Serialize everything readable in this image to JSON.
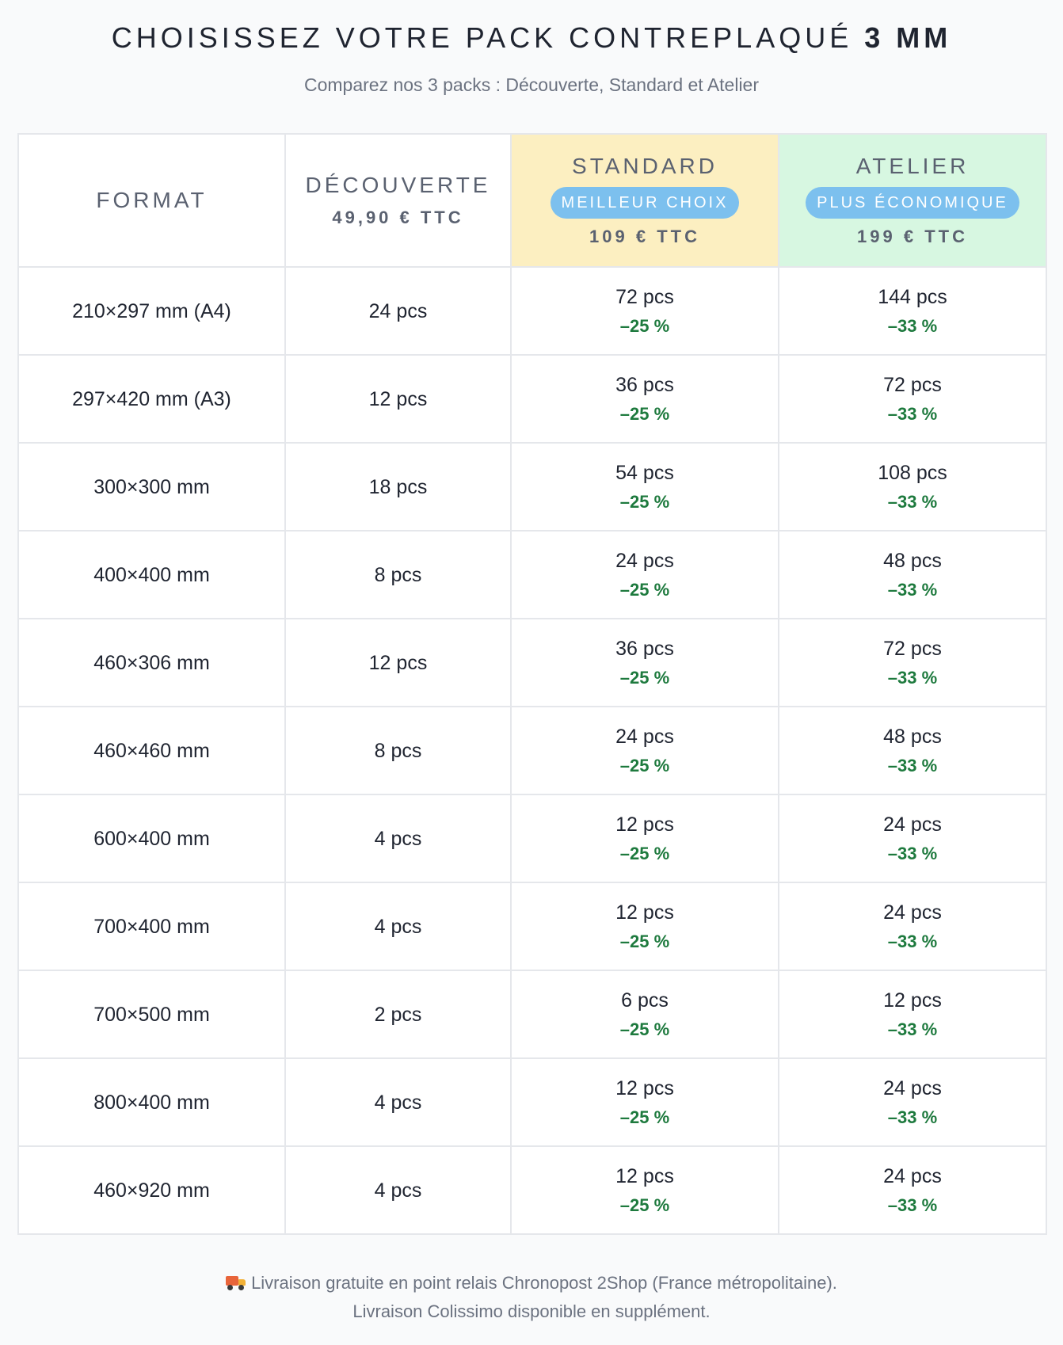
{
  "header": {
    "title_main": "CHOISISSEZ VOTRE PACK CONTREPLAQUÉ",
    "title_strong": "3 MM",
    "subtitle": "Comparez nos 3 packs : Découverte, Standard et Atelier"
  },
  "table": {
    "columns": {
      "format": {
        "label": "FORMAT"
      },
      "decouverte": {
        "label": "DÉCOUVERTE",
        "price": "49,90 € TTC"
      },
      "standard": {
        "label": "STANDARD",
        "badge": "MEILLEUR CHOIX",
        "price": "109 € TTC",
        "color": "#fcefc1"
      },
      "atelier": {
        "label": "ATELIER",
        "badge": "PLUS ÉCONOMIQUE",
        "price": "199 € TTC",
        "color": "#d7f7e1"
      }
    },
    "badge_color": "#7cc0ee",
    "discount_color": "#1e7a3e",
    "rows": [
      {
        "format": "210×297 mm (A4)",
        "decouverte": "24 pcs",
        "standard": "72 pcs",
        "standard_discount": "–25 %",
        "atelier": "144 pcs",
        "atelier_discount": "–33 %"
      },
      {
        "format": "297×420 mm (A3)",
        "decouverte": "12 pcs",
        "standard": "36 pcs",
        "standard_discount": "–25 %",
        "atelier": "72 pcs",
        "atelier_discount": "–33 %"
      },
      {
        "format": "300×300 mm",
        "decouverte": "18 pcs",
        "standard": "54 pcs",
        "standard_discount": "–25 %",
        "atelier": "108 pcs",
        "atelier_discount": "–33 %"
      },
      {
        "format": "400×400 mm",
        "decouverte": "8 pcs",
        "standard": "24 pcs",
        "standard_discount": "–25 %",
        "atelier": "48 pcs",
        "atelier_discount": "–33 %"
      },
      {
        "format": "460×306 mm",
        "decouverte": "12 pcs",
        "standard": "36 pcs",
        "standard_discount": "–25 %",
        "atelier": "72 pcs",
        "atelier_discount": "–33 %"
      },
      {
        "format": "460×460 mm",
        "decouverte": "8 pcs",
        "standard": "24 pcs",
        "standard_discount": "–25 %",
        "atelier": "48 pcs",
        "atelier_discount": "–33 %"
      },
      {
        "format": "600×400 mm",
        "decouverte": "4 pcs",
        "standard": "12 pcs",
        "standard_discount": "–25 %",
        "atelier": "24 pcs",
        "atelier_discount": "–33 %"
      },
      {
        "format": "700×400 mm",
        "decouverte": "4 pcs",
        "standard": "12 pcs",
        "standard_discount": "–25 %",
        "atelier": "24 pcs",
        "atelier_discount": "–33 %"
      },
      {
        "format": "700×500 mm",
        "decouverte": "2 pcs",
        "standard": "6 pcs",
        "standard_discount": "–25 %",
        "atelier": "12 pcs",
        "atelier_discount": "–33 %"
      },
      {
        "format": "800×400 mm",
        "decouverte": "4 pcs",
        "standard": "12 pcs",
        "standard_discount": "–25 %",
        "atelier": "24 pcs",
        "atelier_discount": "–33 %"
      },
      {
        "format": "460×920 mm",
        "decouverte": "4 pcs",
        "standard": "12 pcs",
        "standard_discount": "–25 %",
        "atelier": "24 pcs",
        "atelier_discount": "–33 %"
      }
    ]
  },
  "footer": {
    "icon": "truck-icon",
    "line1": "Livraison gratuite en point relais Chronopost 2Shop (France métropolitaine).",
    "line2": "Livraison Colissimo disponible en supplément."
  }
}
